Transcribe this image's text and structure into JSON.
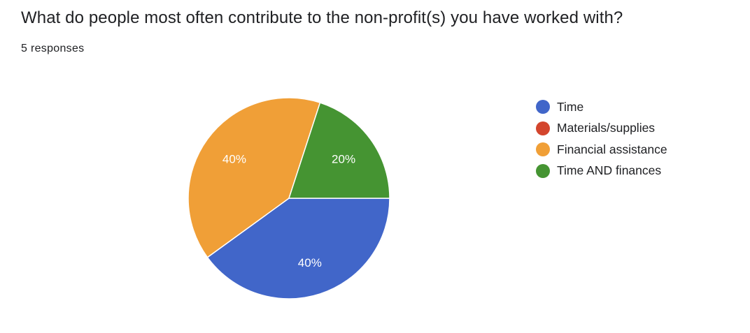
{
  "header": {
    "title": "What do people most often contribute to the non-profit(s) you have worked with?",
    "responses": "5 responses"
  },
  "chart_data": {
    "type": "pie",
    "title": "What do people most often contribute to the non-profit(s) you have worked with?",
    "categories": [
      "Time",
      "Materials/supplies",
      "Financial assistance",
      "Time AND finances"
    ],
    "values": [
      2,
      0,
      2,
      1
    ],
    "percent_labels": [
      "40%",
      "0%",
      "40%",
      "20%"
    ],
    "colors": [
      "#4166c9",
      "#d3452d",
      "#f09f37",
      "#459432"
    ],
    "legend_position": "right",
    "total": 5
  }
}
